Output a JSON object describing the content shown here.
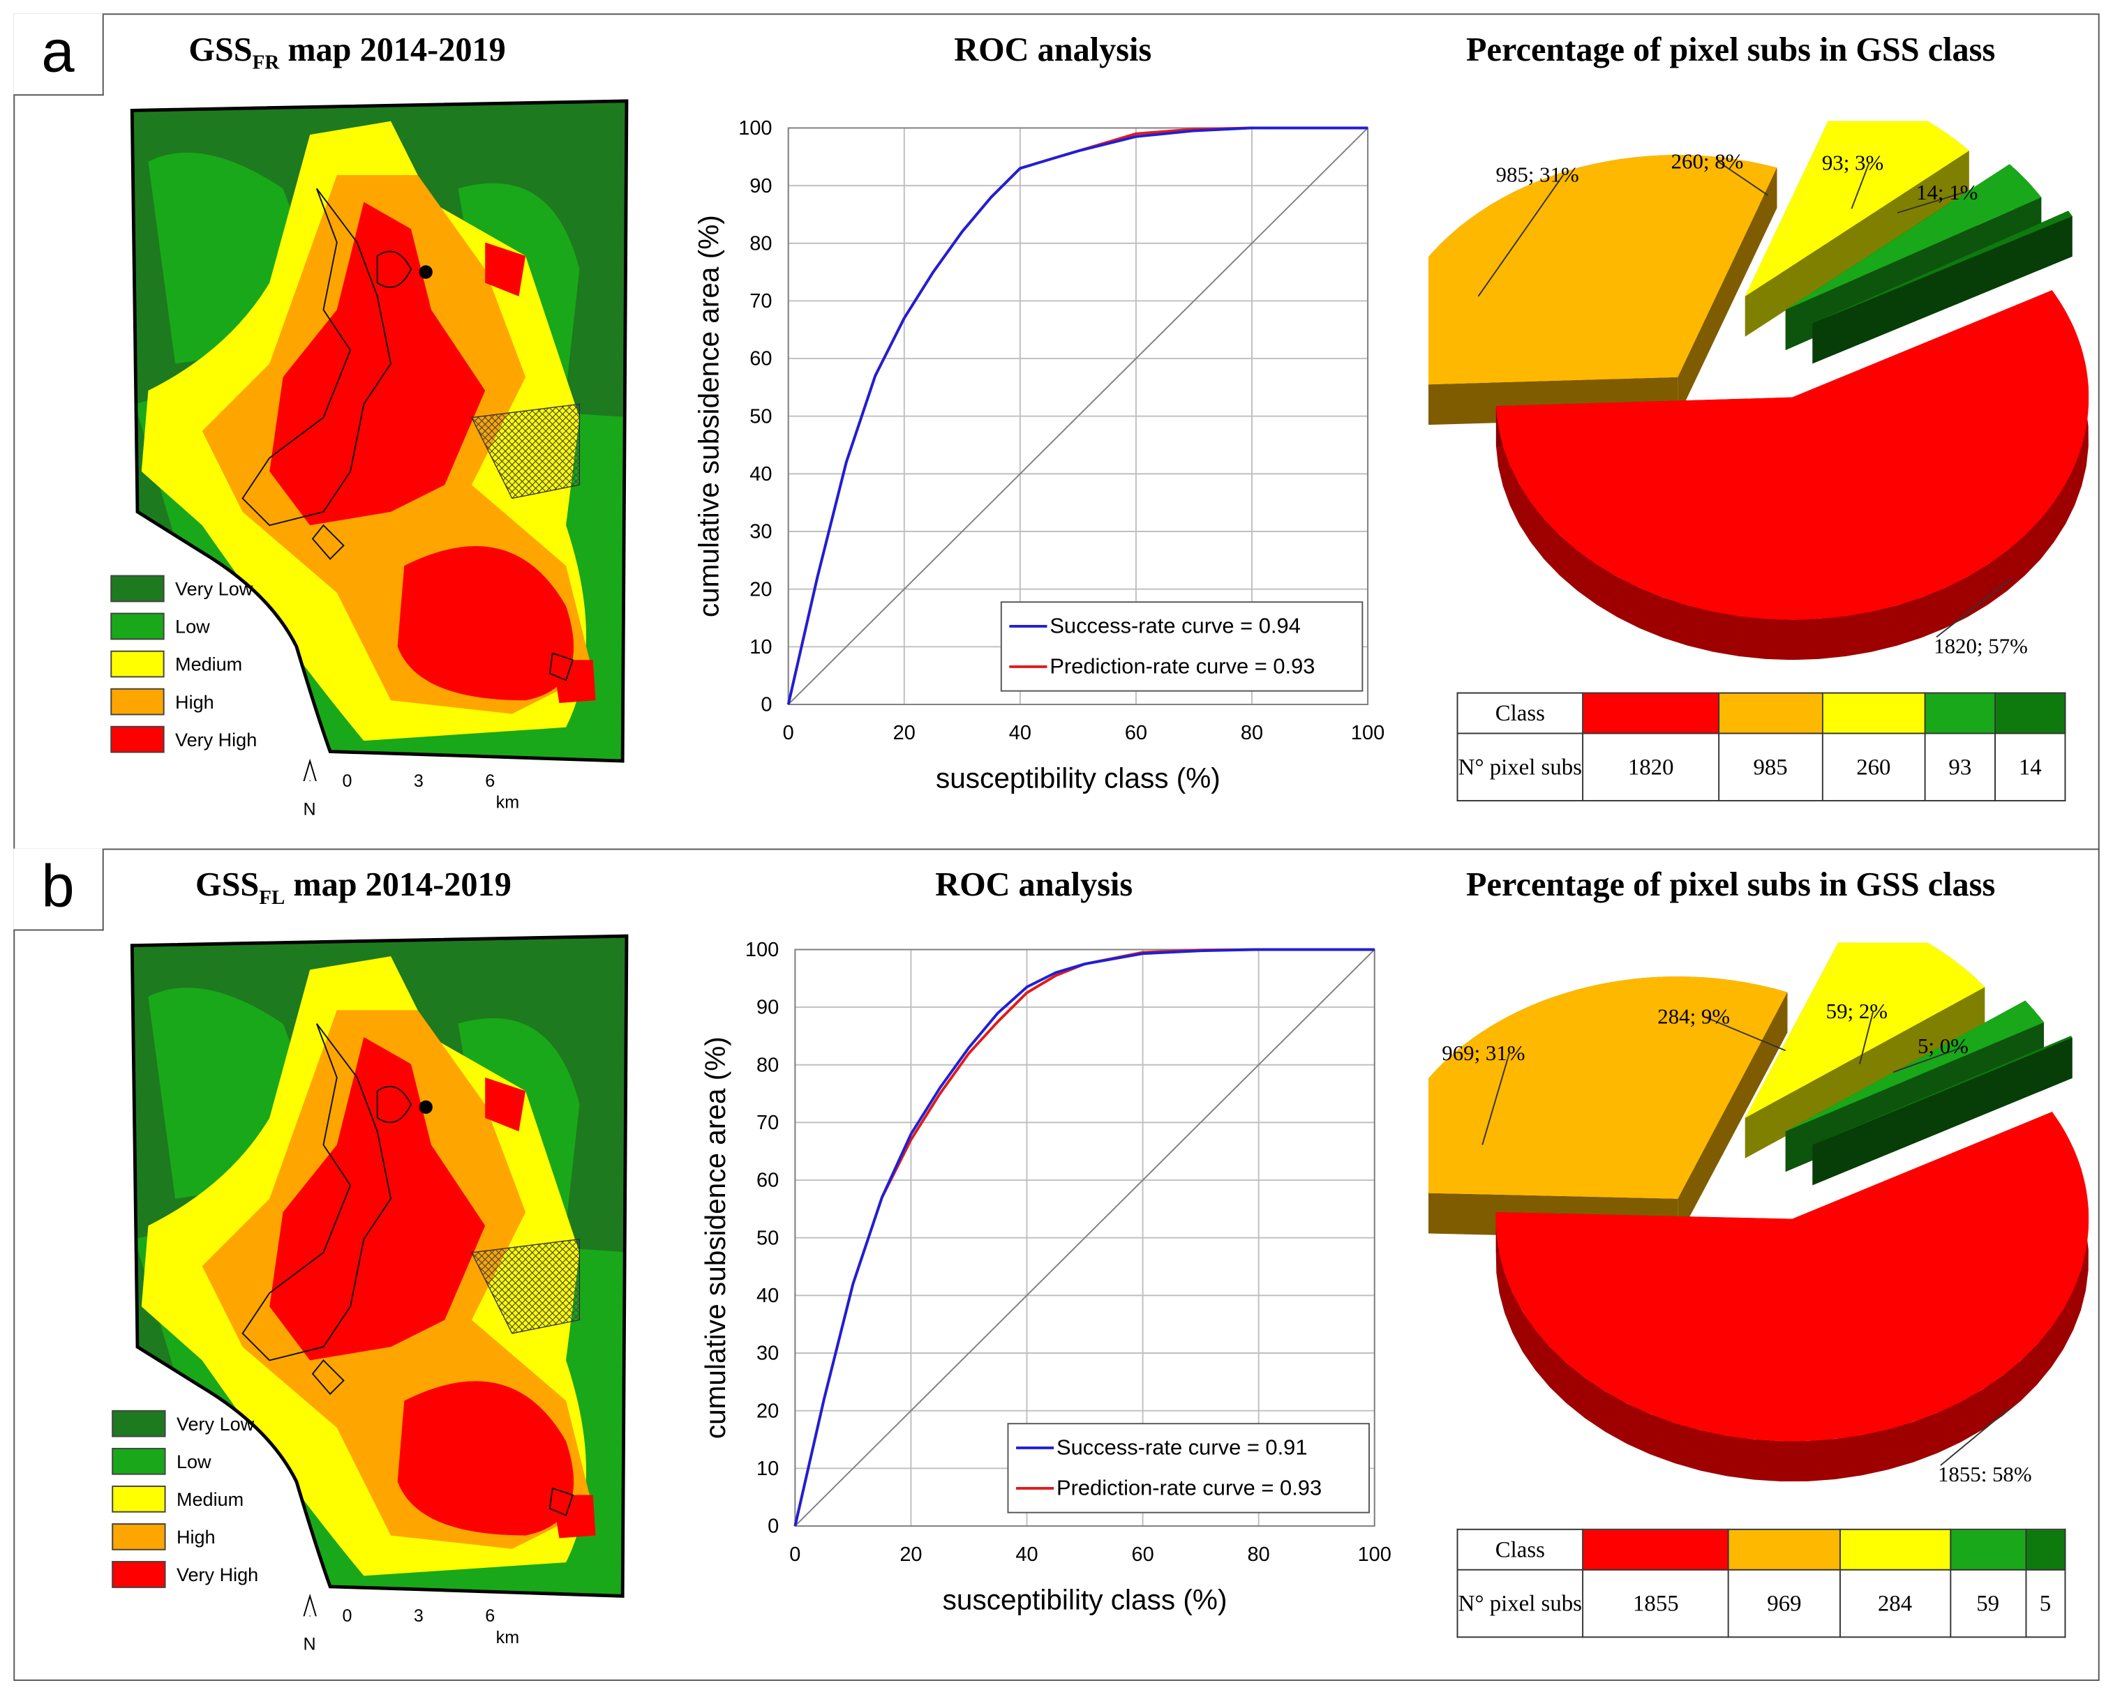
{
  "panels": [
    {
      "letter": "a",
      "map": {
        "title_main": "GSS",
        "title_sub": "FR",
        "title_rest": " map 2014-2019"
      },
      "legend": [
        {
          "label": "Very Low",
          "color": "#1e7a1e"
        },
        {
          "label": "Low",
          "color": "#19a819"
        },
        {
          "label": "Medium",
          "color": "#ffff00"
        },
        {
          "label": "High",
          "color": "#ffa500"
        },
        {
          "label": "Very High",
          "color": "#ff0000"
        }
      ],
      "scale": {
        "north": "N",
        "ticks": [
          "0",
          "3",
          "6"
        ],
        "unit": "km"
      },
      "roc_title": "ROC analysis",
      "pie_title": "Percentage of pixel subs in GSS class",
      "table": {
        "header": "Class",
        "row_label": "N° pixel subs",
        "values": [
          "1820",
          "985",
          "260",
          "93",
          "14"
        ]
      },
      "pie_labels": [
        "1820; 57%",
        "985; 31%",
        "260; 8%",
        "93; 3%",
        "14; 1%"
      ]
    },
    {
      "letter": "b",
      "map": {
        "title_main": "GSS",
        "title_sub": "FL",
        "title_rest": " map 2014-2019"
      },
      "legend": [
        {
          "label": "Very Low",
          "color": "#1e7a1e"
        },
        {
          "label": "Low",
          "color": "#19a819"
        },
        {
          "label": "Medium",
          "color": "#ffff00"
        },
        {
          "label": "High",
          "color": "#ffa500"
        },
        {
          "label": "Very High",
          "color": "#ff0000"
        }
      ],
      "scale": {
        "north": "N",
        "ticks": [
          "0",
          "3",
          "6"
        ],
        "unit": "km"
      },
      "roc_title": "ROC analysis",
      "pie_title": "Percentage of pixel subs in GSS class",
      "table": {
        "header": "Class",
        "row_label": "N° pixel subs",
        "values": [
          "1855",
          "969",
          "284",
          "59",
          "5"
        ]
      },
      "pie_labels": [
        "1855; 58%",
        "969; 31%",
        "284; 9%",
        "59; 2%",
        "5; 0%"
      ]
    }
  ],
  "chart_data": [
    {
      "type": "line",
      "title": "ROC analysis",
      "xlabel": "susceptibility class (%)",
      "ylabel": "cumulative subsidence area (%)",
      "xlim": [
        0,
        100
      ],
      "ylim": [
        0,
        100
      ],
      "xticks": [
        "0",
        "20",
        "40",
        "60",
        "80",
        "100"
      ],
      "yticks": [
        "0",
        "10",
        "20",
        "30",
        "40",
        "50",
        "60",
        "70",
        "80",
        "90",
        "100"
      ],
      "grid": true,
      "legend_position": "bottom-right",
      "series": [
        {
          "name": "Success-rate curve = 0.94",
          "color": "#1f1fd6",
          "x": [
            0,
            5,
            10,
            15,
            20,
            25,
            30,
            35,
            40,
            45,
            50,
            60,
            70,
            80,
            90,
            100
          ],
          "y": [
            0,
            22,
            42,
            57,
            67,
            75,
            82,
            88,
            93,
            94.5,
            96,
            98.5,
            99.5,
            100,
            100,
            100
          ]
        },
        {
          "name": "Prediction-rate curve = 0.93",
          "color": "#e01b1b",
          "x": [
            0,
            5,
            10,
            15,
            20,
            25,
            30,
            35,
            40,
            45,
            50,
            60,
            70,
            80,
            90,
            100
          ],
          "y": [
            0,
            22,
            42,
            57,
            67,
            75,
            82,
            88,
            93,
            94.5,
            96,
            99,
            99.8,
            100,
            100,
            100
          ]
        },
        {
          "name": "diagonal",
          "color": "#808080",
          "x": [
            0,
            100
          ],
          "y": [
            0,
            100
          ]
        }
      ]
    },
    {
      "type": "pie",
      "title": "Percentage of pixel subs in GSS class",
      "categories": [
        "Very High",
        "High",
        "Medium",
        "Low",
        "Very Low"
      ],
      "colors": [
        "#ff0000",
        "#ffb800",
        "#ffff00",
        "#19a819",
        "#0e7a0e"
      ],
      "values": [
        1820,
        985,
        260,
        93,
        14
      ],
      "labels": [
        "1820; 57%",
        "985; 31%",
        "260; 8%",
        "93; 3%",
        "14; 1%"
      ]
    },
    {
      "type": "line",
      "title": "ROC analysis",
      "xlabel": "susceptibility class (%)",
      "ylabel": "cumulative subsidence area (%)",
      "xlim": [
        0,
        100
      ],
      "ylim": [
        0,
        100
      ],
      "xticks": [
        "0",
        "20",
        "40",
        "60",
        "80",
        "100"
      ],
      "yticks": [
        "0",
        "10",
        "20",
        "30",
        "40",
        "50",
        "60",
        "70",
        "80",
        "90",
        "100"
      ],
      "grid": true,
      "legend_position": "bottom-right",
      "series": [
        {
          "name": "Success-rate curve = 0.91",
          "color": "#1f1fd6",
          "x": [
            0,
            5,
            10,
            15,
            20,
            25,
            30,
            35,
            40,
            45,
            50,
            60,
            70,
            80,
            90,
            100
          ],
          "y": [
            0,
            22,
            42,
            57,
            68,
            76,
            83,
            89,
            93.5,
            96,
            97.5,
            99.3,
            99.8,
            100,
            100,
            100
          ]
        },
        {
          "name": "Prediction-rate curve = 0.93",
          "color": "#e01b1b",
          "x": [
            0,
            5,
            10,
            15,
            20,
            25,
            30,
            35,
            40,
            45,
            50,
            60,
            70,
            80,
            90,
            100
          ],
          "y": [
            0,
            22,
            42,
            57,
            67,
            75,
            82,
            87.5,
            92.5,
            95.5,
            97.5,
            99.5,
            99.9,
            100,
            100,
            100
          ]
        },
        {
          "name": "diagonal",
          "color": "#808080",
          "x": [
            0,
            100
          ],
          "y": [
            0,
            100
          ]
        }
      ]
    },
    {
      "type": "pie",
      "title": "Percentage of pixel subs in GSS class",
      "categories": [
        "Very High",
        "High",
        "Medium",
        "Low",
        "Very Low"
      ],
      "colors": [
        "#ff0000",
        "#ffb800",
        "#ffff00",
        "#19a819",
        "#0e7a0e"
      ],
      "values": [
        1855,
        969,
        284,
        59,
        5
      ],
      "labels": [
        "1855; 58%",
        "969; 31%",
        "284; 9%",
        "59; 2%",
        "5; 0%"
      ]
    }
  ]
}
